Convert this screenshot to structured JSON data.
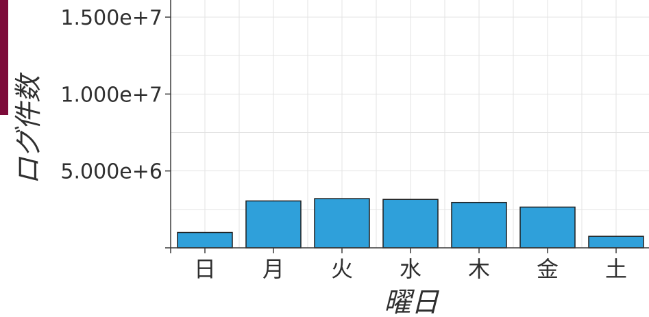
{
  "chart_data": {
    "type": "bar",
    "title": "",
    "xlabel": "曜日",
    "ylabel": "ログ件数",
    "categories": [
      "日",
      "月",
      "火",
      "水",
      "木",
      "金",
      "土"
    ],
    "values": [
      1000000,
      3050000,
      3200000,
      3150000,
      2950000,
      2650000,
      750000
    ],
    "ylim": [
      0,
      15000000
    ],
    "yticks": [
      5000000,
      10000000,
      15000000
    ],
    "ytick_labels": [
      "5.000e+6",
      "1.000e+7",
      "1.500e+7"
    ],
    "grid": true,
    "bar_color": "#2fa0da",
    "bar_edge_color": "#1f1f1f",
    "grid_color": "#e3e3e3",
    "accent_color": "#7d0b3a"
  }
}
